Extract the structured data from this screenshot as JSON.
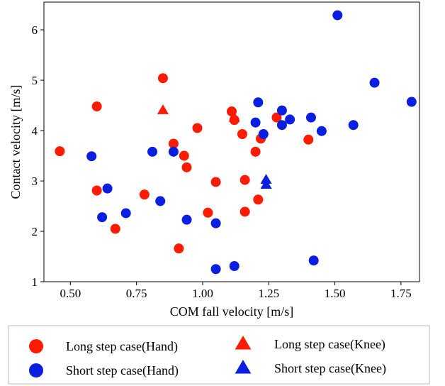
{
  "chart_data": {
    "type": "scatter",
    "title": "",
    "xlabel": "COM fall velocity [m/s]",
    "ylabel": "Contact velocity [m/s]",
    "xlim": [
      0.4,
      1.82
    ],
    "ylim": [
      1.0,
      6.55
    ],
    "xticks": [
      "0.50",
      "0.75",
      "1.00",
      "1.25",
      "1.50",
      "1.75"
    ],
    "yticks": [
      "1",
      "2",
      "3",
      "4",
      "5",
      "6"
    ],
    "grid": false,
    "legend_position": "below",
    "series": [
      {
        "name": "Long step case(Hand)",
        "marker": "circle",
        "color": "#ff1a00",
        "points": [
          [
            0.46,
            3.59
          ],
          [
            0.6,
            4.48
          ],
          [
            0.6,
            2.81
          ],
          [
            0.67,
            2.05
          ],
          [
            0.78,
            2.73
          ],
          [
            0.85,
            5.04
          ],
          [
            0.89,
            3.74
          ],
          [
            0.91,
            1.66
          ],
          [
            0.93,
            3.5
          ],
          [
            0.94,
            3.27
          ],
          [
            0.98,
            4.05
          ],
          [
            1.02,
            2.37
          ],
          [
            1.05,
            2.98
          ],
          [
            1.11,
            4.38
          ],
          [
            1.12,
            4.21
          ],
          [
            1.15,
            3.93
          ],
          [
            1.16,
            3.02
          ],
          [
            1.16,
            2.39
          ],
          [
            1.2,
            3.58
          ],
          [
            1.21,
            2.63
          ],
          [
            1.22,
            3.84
          ],
          [
            1.28,
            4.26
          ],
          [
            1.4,
            3.82
          ]
        ]
      },
      {
        "name": "Short step case(Hand)",
        "marker": "circle",
        "color": "#0a1fe0",
        "points": [
          [
            0.58,
            3.49
          ],
          [
            0.62,
            2.28
          ],
          [
            0.64,
            2.85
          ],
          [
            0.71,
            2.36
          ],
          [
            0.81,
            3.58
          ],
          [
            0.84,
            2.6
          ],
          [
            0.89,
            3.58
          ],
          [
            0.94,
            2.23
          ],
          [
            1.05,
            2.16
          ],
          [
            1.05,
            1.25
          ],
          [
            1.12,
            1.31
          ],
          [
            1.2,
            4.16
          ],
          [
            1.21,
            4.56
          ],
          [
            1.23,
            3.93
          ],
          [
            1.3,
            4.4
          ],
          [
            1.3,
            4.11
          ],
          [
            1.33,
            4.22
          ],
          [
            1.41,
            4.26
          ],
          [
            1.42,
            1.42
          ],
          [
            1.45,
            3.99
          ],
          [
            1.51,
            6.29
          ],
          [
            1.57,
            4.11
          ],
          [
            1.65,
            4.95
          ],
          [
            1.79,
            4.57
          ]
        ]
      },
      {
        "name": "Long step case(Knee)",
        "marker": "triangle",
        "color": "#ff1a00",
        "points": [
          [
            0.85,
            4.4
          ],
          [
            1.12,
            4.25
          ]
        ]
      },
      {
        "name": "Short step case(Knee)",
        "marker": "triangle",
        "color": "#0a1fe0",
        "points": [
          [
            1.24,
            3.02
          ],
          [
            1.24,
            2.92
          ]
        ]
      }
    ]
  }
}
